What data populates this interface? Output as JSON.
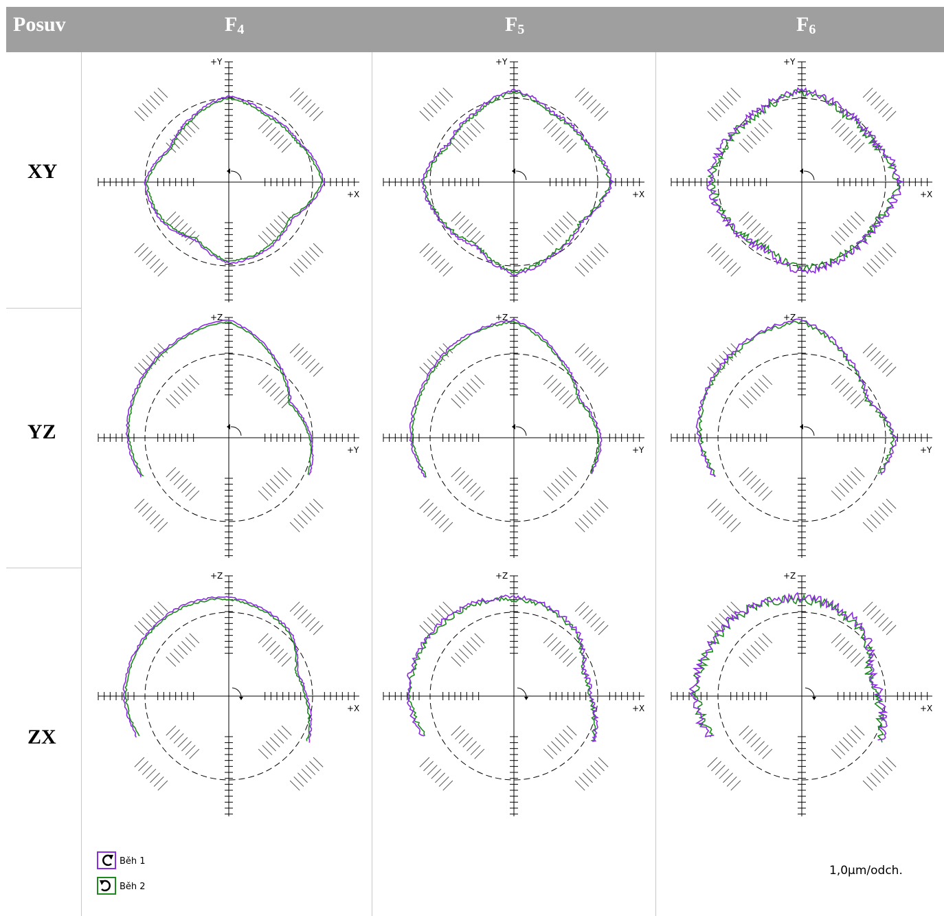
{
  "header": {
    "posuv": "Posuv",
    "columns": [
      {
        "base": "F",
        "sub": "4"
      },
      {
        "base": "F",
        "sub": "5"
      },
      {
        "base": "F",
        "sub": "6"
      }
    ]
  },
  "rows": [
    "XY",
    "YZ",
    "ZX"
  ],
  "legend": [
    {
      "label": "Běh 1",
      "color": "#8a2be2",
      "icon": "clockwise-arrow-icon"
    },
    {
      "label": "Běh 2",
      "color": "#1a8a1a",
      "icon": "counterclockwise-arrow-icon"
    }
  ],
  "scale_label": "1,0µm/odch.",
  "chart_data": {
    "type": "line",
    "description_units": "radial deviation, µm",
    "series_names": [
      "Běh 1",
      "Běh 2"
    ],
    "colors": {
      "run1": "#8a2be2",
      "run2": "#1a8a1a",
      "axes": "#000000",
      "reference_circle": "#000000"
    },
    "plots": [
      {
        "plane": "XY",
        "column": "F4",
        "h_axis": "+X",
        "v_axis": "+Y",
        "arc": [
          0,
          360
        ],
        "profile": [
          [
            0,
            1.8
          ],
          [
            30,
            0.9
          ],
          [
            60,
            0.7
          ],
          [
            90,
            1.2
          ],
          [
            120,
            0.5
          ],
          [
            150,
            0.1
          ],
          [
            180,
            1.1
          ],
          [
            210,
            0.7
          ],
          [
            240,
            0.0
          ],
          [
            270,
            0.9
          ],
          [
            300,
            0.7
          ],
          [
            330,
            0.4
          ]
        ],
        "noise": 0.06
      },
      {
        "plane": "XY",
        "column": "F5",
        "h_axis": "+X",
        "v_axis": "+Y",
        "arc": [
          0,
          360
        ],
        "profile": [
          [
            0,
            2.0
          ],
          [
            30,
            1.0
          ],
          [
            60,
            0.8
          ],
          [
            90,
            1.6
          ],
          [
            120,
            0.8
          ],
          [
            150,
            0.6
          ],
          [
            180,
            1.6
          ],
          [
            210,
            1.0
          ],
          [
            240,
            0.5
          ],
          [
            270,
            1.6
          ],
          [
            300,
            1.0
          ],
          [
            330,
            0.8
          ]
        ],
        "noise": 0.1
      },
      {
        "plane": "XY",
        "column": "F6",
        "h_axis": "+X",
        "v_axis": "+Y",
        "arc": [
          0,
          360
        ],
        "profile": [
          [
            0,
            2.0
          ],
          [
            30,
            1.0
          ],
          [
            60,
            1.0
          ],
          [
            90,
            1.6
          ],
          [
            120,
            1.0
          ],
          [
            150,
            1.2
          ],
          [
            180,
            1.6
          ],
          [
            210,
            1.1
          ],
          [
            240,
            0.6
          ],
          [
            270,
            1.4
          ],
          [
            300,
            1.2
          ],
          [
            330,
            1.2
          ]
        ],
        "noise": 0.25
      },
      {
        "plane": "YZ",
        "column": "F4",
        "h_axis": "+Y",
        "v_axis": "+Z",
        "arc": [
          -25,
          205
        ],
        "profile": [
          [
            -25,
            1.4
          ],
          [
            0,
            1.0
          ],
          [
            30,
            0.3
          ],
          [
            60,
            1.6
          ],
          [
            90,
            3.2
          ],
          [
            120,
            2.7
          ],
          [
            150,
            2.4
          ],
          [
            180,
            2.2
          ],
          [
            205,
            1.8
          ]
        ],
        "noise": 0.05
      },
      {
        "plane": "YZ",
        "column": "F5",
        "h_axis": "+Y",
        "v_axis": "+Z",
        "arc": [
          -25,
          205
        ],
        "profile": [
          [
            -25,
            1.2
          ],
          [
            0,
            1.3
          ],
          [
            30,
            0.6
          ],
          [
            60,
            1.6
          ],
          [
            90,
            3.2
          ],
          [
            120,
            2.8
          ],
          [
            150,
            2.4
          ],
          [
            180,
            2.3
          ],
          [
            205,
            1.9
          ]
        ],
        "noise": 0.07
      },
      {
        "plane": "YZ",
        "column": "F6",
        "h_axis": "+Y",
        "v_axis": "+Z",
        "arc": [
          -25,
          205
        ],
        "profile": [
          [
            -25,
            1.3
          ],
          [
            0,
            1.7
          ],
          [
            30,
            0.6
          ],
          [
            60,
            1.6
          ],
          [
            90,
            3.2
          ],
          [
            120,
            2.8
          ],
          [
            150,
            2.5
          ],
          [
            180,
            2.3
          ],
          [
            205,
            1.8
          ]
        ],
        "noise": 0.12
      },
      {
        "plane": "ZX",
        "column": "F4",
        "h_axis": "+X",
        "v_axis": "+Z",
        "arc": [
          -30,
          205
        ],
        "profile": [
          [
            -30,
            1.6
          ],
          [
            0,
            0.7
          ],
          [
            20,
            0.4
          ],
          [
            45,
            1.4
          ],
          [
            75,
            1.8
          ],
          [
            90,
            2.0
          ],
          [
            120,
            2.2
          ],
          [
            150,
            2.3
          ],
          [
            180,
            2.4
          ],
          [
            205,
            2.1
          ]
        ],
        "noise": 0.06
      },
      {
        "plane": "ZX",
        "column": "F5",
        "h_axis": "+X",
        "v_axis": "+Z",
        "arc": [
          -30,
          205
        ],
        "profile": [
          [
            -30,
            1.6
          ],
          [
            0,
            0.7
          ],
          [
            20,
            0.5
          ],
          [
            45,
            1.5
          ],
          [
            75,
            1.9
          ],
          [
            90,
            2.0
          ],
          [
            120,
            2.2
          ],
          [
            150,
            2.4
          ],
          [
            180,
            2.5
          ],
          [
            205,
            2.0
          ]
        ],
        "noise": 0.15
      },
      {
        "plane": "ZX",
        "column": "F6",
        "h_axis": "+X",
        "v_axis": "+Z",
        "arc": [
          -30,
          205
        ],
        "profile": [
          [
            -30,
            1.5
          ],
          [
            0,
            0.7
          ],
          [
            20,
            0.4
          ],
          [
            45,
            1.4
          ],
          [
            75,
            1.9
          ],
          [
            90,
            2.0
          ],
          [
            120,
            2.3
          ],
          [
            150,
            2.4
          ],
          [
            180,
            2.6
          ],
          [
            205,
            2.1
          ]
        ],
        "noise": 0.3
      }
    ]
  }
}
